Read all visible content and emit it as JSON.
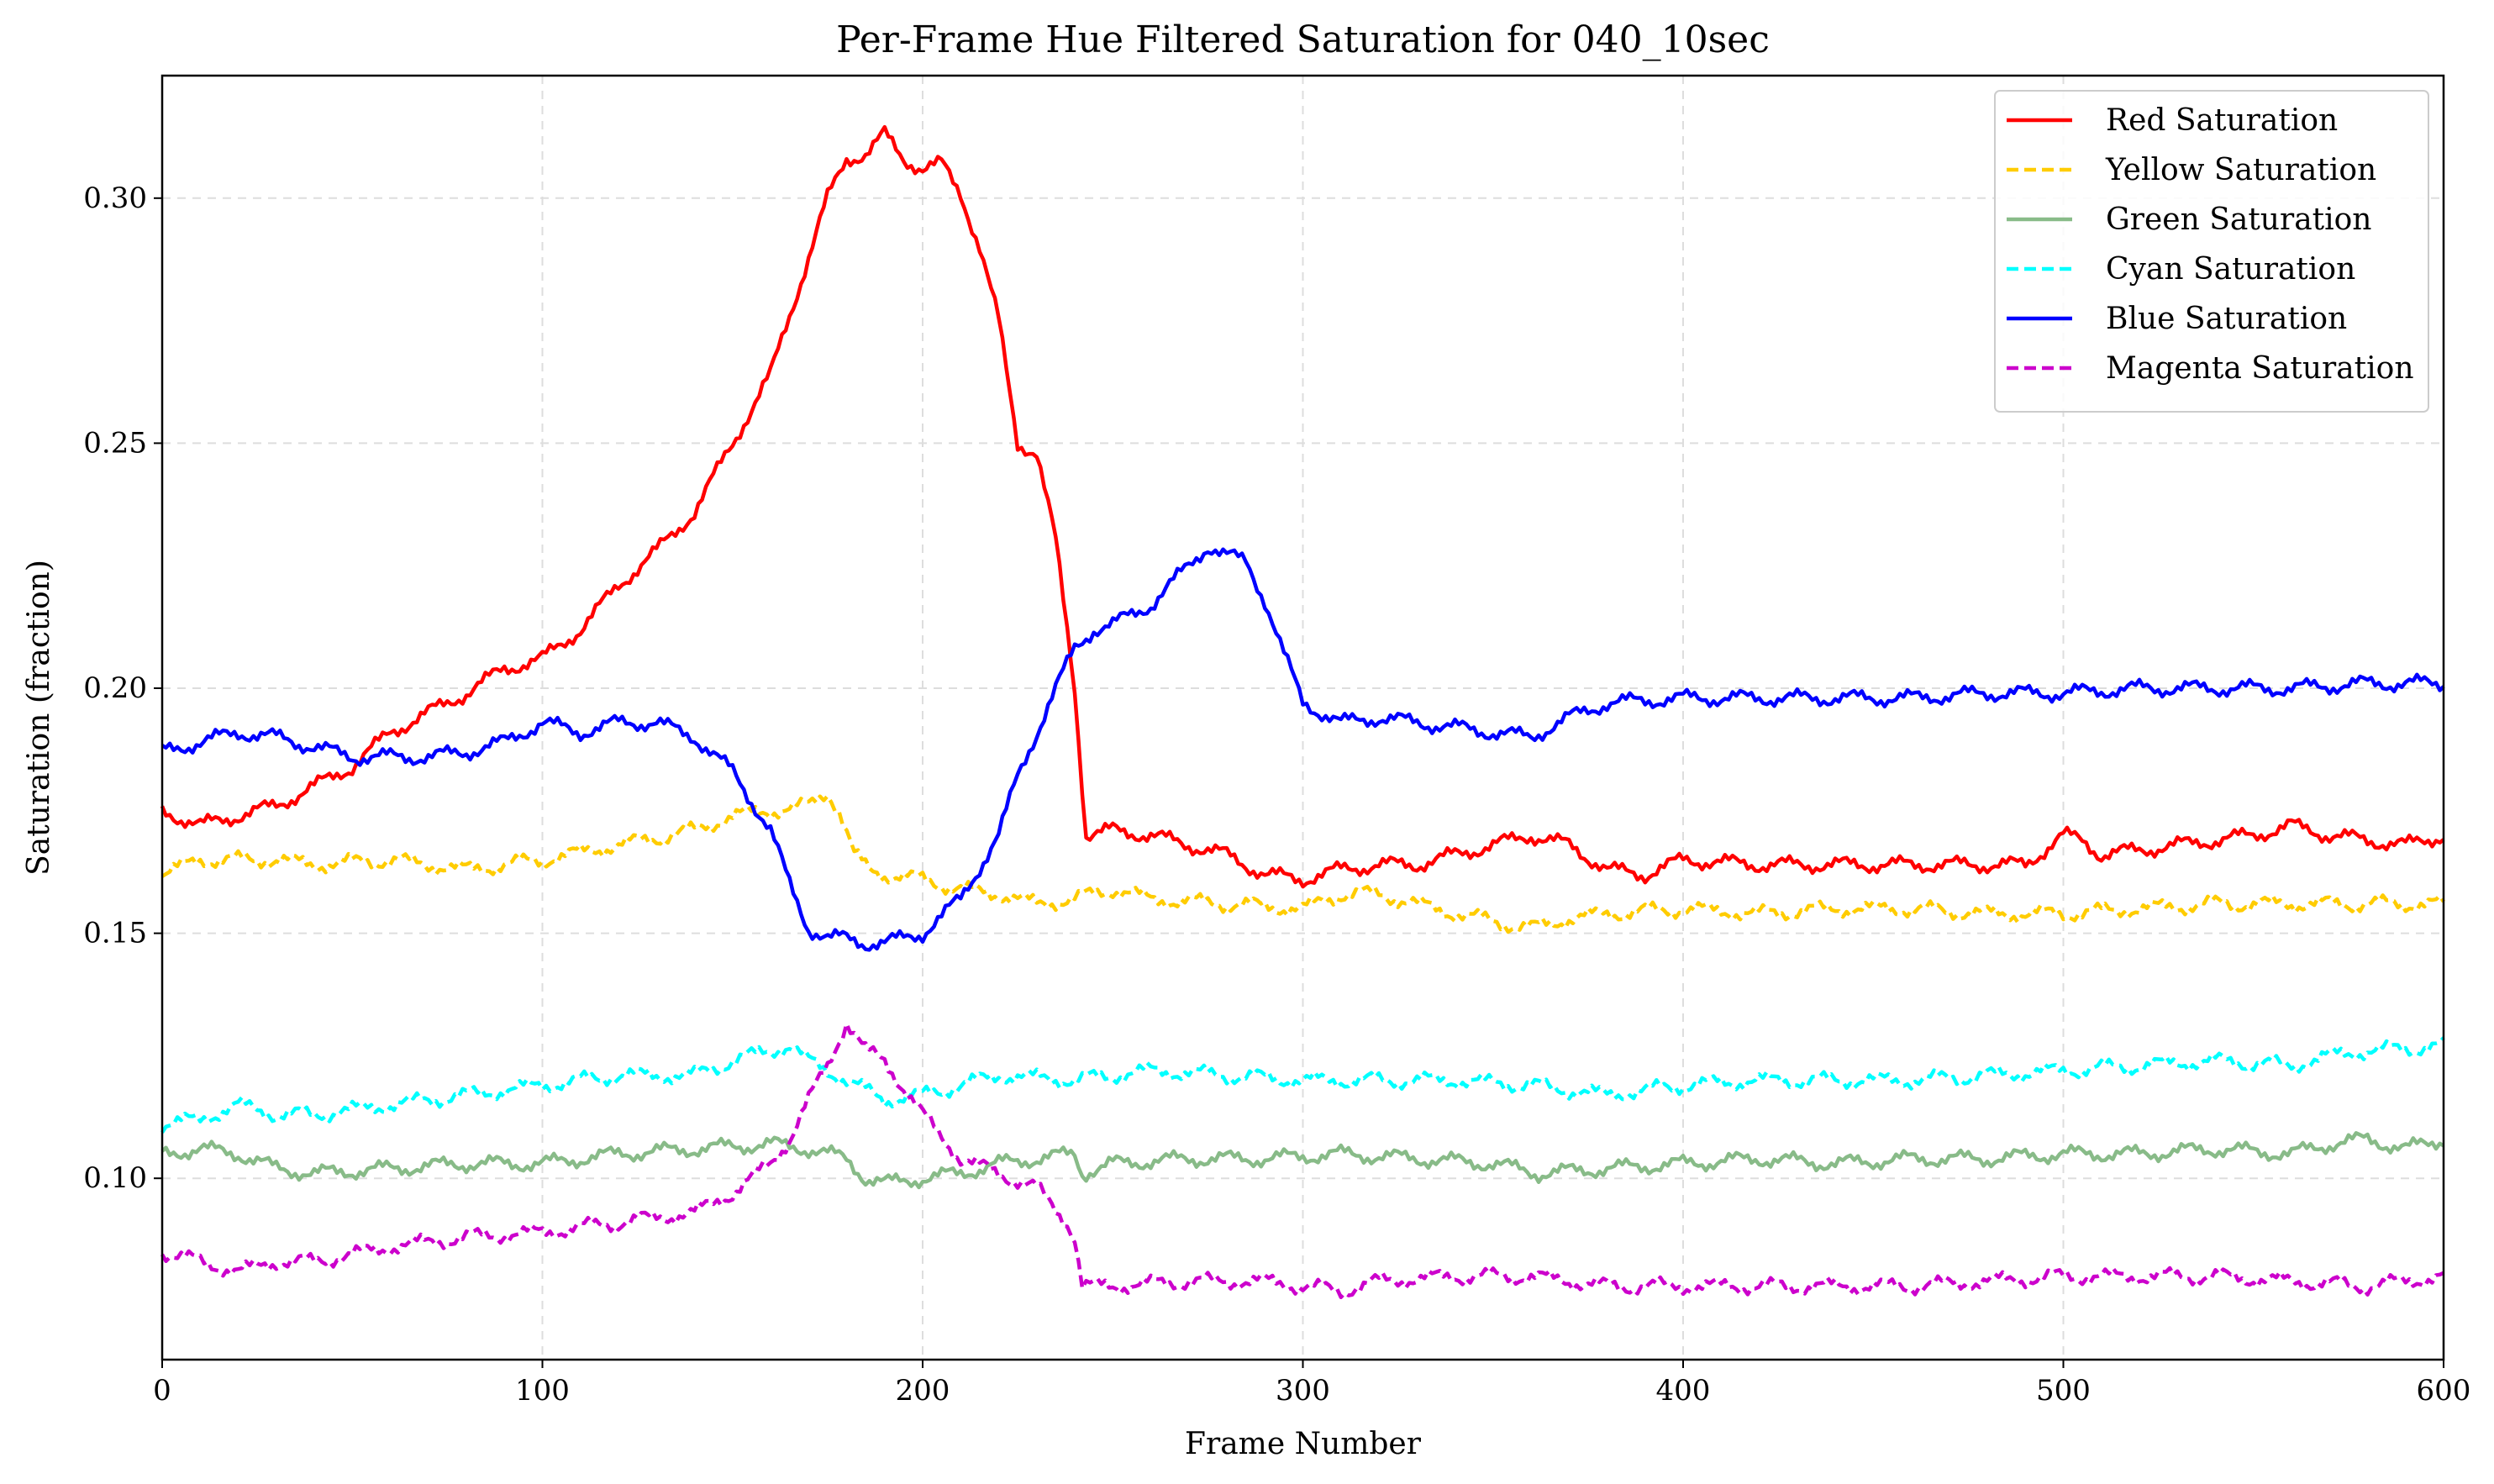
{
  "chart_data": {
    "type": "line",
    "title": "Per-Frame Hue Filtered Saturation for 040_10sec",
    "xlabel": "Frame Number",
    "ylabel": "Saturation (fraction)",
    "xlim": [
      0,
      600
    ],
    "ylim": [
      0.063,
      0.325
    ],
    "xticks": [
      0,
      100,
      200,
      300,
      400,
      500,
      600
    ],
    "xtick_labels": [
      "0",
      "100",
      "200",
      "300",
      "400",
      "500",
      "600"
    ],
    "yticks": [
      0.1,
      0.15,
      0.2,
      0.25,
      0.3
    ],
    "ytick_labels": [
      "0.10",
      "0.15",
      "0.20",
      "0.25",
      "0.30"
    ],
    "grid": true,
    "legend_position": "top-right",
    "series": [
      {
        "name": "Red Saturation",
        "color": "#ff0000",
        "style": "solid",
        "x": [
          0,
          10,
          20,
          30,
          40,
          50,
          60,
          70,
          80,
          90,
          100,
          110,
          120,
          130,
          140,
          150,
          160,
          170,
          175,
          180,
          185,
          190,
          195,
          200,
          205,
          210,
          215,
          220,
          225,
          230,
          235,
          240,
          243,
          250,
          260,
          270,
          280,
          290,
          300,
          310,
          320,
          330,
          340,
          350,
          360,
          370,
          380,
          390,
          400,
          420,
          440,
          460,
          480,
          490,
          495,
          500,
          505,
          510,
          520,
          530,
          540,
          550,
          560,
          570,
          580,
          590,
          600
        ],
        "y": [
          0.175,
          0.172,
          0.174,
          0.176,
          0.18,
          0.184,
          0.191,
          0.195,
          0.199,
          0.204,
          0.206,
          0.212,
          0.221,
          0.228,
          0.236,
          0.25,
          0.264,
          0.288,
          0.3,
          0.308,
          0.309,
          0.313,
          0.308,
          0.306,
          0.307,
          0.301,
          0.29,
          0.275,
          0.25,
          0.248,
          0.23,
          0.2,
          0.17,
          0.171,
          0.17,
          0.168,
          0.166,
          0.162,
          0.161,
          0.163,
          0.164,
          0.164,
          0.166,
          0.168,
          0.17,
          0.168,
          0.163,
          0.162,
          0.165,
          0.164,
          0.164,
          0.164,
          0.164,
          0.164,
          0.167,
          0.17,
          0.169,
          0.166,
          0.167,
          0.168,
          0.169,
          0.17,
          0.172,
          0.17,
          0.169,
          0.168,
          0.17
        ]
      },
      {
        "name": "Yellow Saturation",
        "color": "#ffcc00",
        "style": "dashed",
        "x": [
          0,
          10,
          20,
          30,
          40,
          60,
          80,
          100,
          120,
          140,
          150,
          160,
          170,
          175,
          178,
          182,
          186,
          190,
          200,
          210,
          220,
          230,
          240,
          250,
          260,
          280,
          300,
          310,
          320,
          340,
          360,
          370,
          380,
          400,
          420,
          440,
          460,
          480,
          500,
          520,
          540,
          560,
          580,
          600
        ],
        "y": [
          0.162,
          0.165,
          0.165,
          0.165,
          0.164,
          0.165,
          0.163,
          0.165,
          0.168,
          0.171,
          0.174,
          0.175,
          0.176,
          0.179,
          0.175,
          0.166,
          0.163,
          0.162,
          0.161,
          0.159,
          0.158,
          0.156,
          0.157,
          0.159,
          0.157,
          0.156,
          0.155,
          0.158,
          0.158,
          0.154,
          0.151,
          0.153,
          0.154,
          0.155,
          0.154,
          0.155,
          0.155,
          0.154,
          0.154,
          0.155,
          0.156,
          0.156,
          0.156,
          0.156
        ]
      },
      {
        "name": "Green Saturation",
        "color": "#88bb88",
        "style": "solid",
        "x": [
          0,
          10,
          20,
          30,
          40,
          60,
          80,
          100,
          120,
          140,
          160,
          170,
          180,
          185,
          190,
          200,
          210,
          220,
          230,
          240,
          242,
          250,
          270,
          290,
          310,
          330,
          350,
          362,
          380,
          400,
          420,
          440,
          460,
          480,
          500,
          520,
          540,
          560,
          570,
          580,
          590,
          600
        ],
        "y": [
          0.105,
          0.106,
          0.105,
          0.102,
          0.101,
          0.102,
          0.103,
          0.103,
          0.105,
          0.106,
          0.107,
          0.106,
          0.104,
          0.1,
          0.099,
          0.1,
          0.101,
          0.103,
          0.104,
          0.105,
          0.101,
          0.103,
          0.104,
          0.104,
          0.105,
          0.104,
          0.103,
          0.101,
          0.102,
          0.103,
          0.104,
          0.103,
          0.104,
          0.104,
          0.105,
          0.105,
          0.106,
          0.105,
          0.107,
          0.108,
          0.106,
          0.108
        ]
      },
      {
        "name": "Cyan Saturation",
        "color": "#00ffff",
        "style": "dashed",
        "x": [
          0,
          10,
          20,
          30,
          40,
          60,
          80,
          100,
          120,
          140,
          150,
          160,
          165,
          170,
          175,
          180,
          185,
          190,
          200,
          210,
          220,
          240,
          260,
          280,
          300,
          320,
          340,
          360,
          380,
          400,
          420,
          440,
          460,
          480,
          500,
          520,
          540,
          560,
          570,
          580,
          600
        ],
        "y": [
          0.111,
          0.112,
          0.115,
          0.113,
          0.113,
          0.115,
          0.117,
          0.119,
          0.121,
          0.121,
          0.124,
          0.126,
          0.127,
          0.124,
          0.122,
          0.12,
          0.118,
          0.116,
          0.117,
          0.119,
          0.121,
          0.12,
          0.122,
          0.121,
          0.12,
          0.12,
          0.12,
          0.119,
          0.117,
          0.119,
          0.12,
          0.12,
          0.12,
          0.121,
          0.122,
          0.123,
          0.124,
          0.123,
          0.125,
          0.126,
          0.127
        ]
      },
      {
        "name": "Blue Saturation",
        "color": "#0000ff",
        "style": "solid",
        "x": [
          0,
          10,
          20,
          30,
          40,
          50,
          60,
          70,
          80,
          90,
          100,
          110,
          120,
          130,
          140,
          150,
          160,
          165,
          170,
          175,
          180,
          185,
          190,
          200,
          210,
          220,
          225,
          230,
          235,
          240,
          245,
          250,
          260,
          270,
          275,
          280,
          285,
          290,
          295,
          300,
          310,
          320,
          340,
          360,
          370,
          380,
          400,
          420,
          440,
          460,
          480,
          500,
          520,
          540,
          560,
          580,
          600
        ],
        "y": [
          0.187,
          0.189,
          0.191,
          0.19,
          0.188,
          0.186,
          0.186,
          0.186,
          0.187,
          0.189,
          0.193,
          0.191,
          0.193,
          0.193,
          0.19,
          0.183,
          0.171,
          0.16,
          0.151,
          0.149,
          0.149,
          0.148,
          0.148,
          0.15,
          0.157,
          0.17,
          0.182,
          0.191,
          0.2,
          0.208,
          0.212,
          0.213,
          0.217,
          0.225,
          0.229,
          0.227,
          0.226,
          0.218,
          0.207,
          0.197,
          0.193,
          0.194,
          0.192,
          0.19,
          0.194,
          0.197,
          0.198,
          0.198,
          0.198,
          0.198,
          0.199,
          0.199,
          0.2,
          0.2,
          0.2,
          0.201,
          0.201
        ]
      },
      {
        "name": "Magenta Saturation",
        "color": "#cc00cc",
        "style": "dashed",
        "x": [
          0,
          10,
          20,
          30,
          40,
          60,
          80,
          100,
          120,
          140,
          150,
          160,
          165,
          170,
          175,
          180,
          185,
          190,
          200,
          210,
          220,
          230,
          238,
          240,
          242,
          250,
          270,
          290,
          300,
          310,
          320,
          340,
          360,
          380,
          400,
          420,
          440,
          460,
          480,
          500,
          520,
          540,
          560,
          580,
          600
        ],
        "y": [
          0.085,
          0.083,
          0.081,
          0.083,
          0.083,
          0.086,
          0.088,
          0.089,
          0.091,
          0.093,
          0.097,
          0.103,
          0.108,
          0.116,
          0.123,
          0.132,
          0.126,
          0.124,
          0.113,
          0.104,
          0.101,
          0.098,
          0.091,
          0.088,
          0.078,
          0.078,
          0.079,
          0.079,
          0.078,
          0.077,
          0.079,
          0.08,
          0.08,
          0.078,
          0.078,
          0.078,
          0.078,
          0.078,
          0.079,
          0.08,
          0.08,
          0.08,
          0.079,
          0.078,
          0.08
        ]
      }
    ]
  }
}
